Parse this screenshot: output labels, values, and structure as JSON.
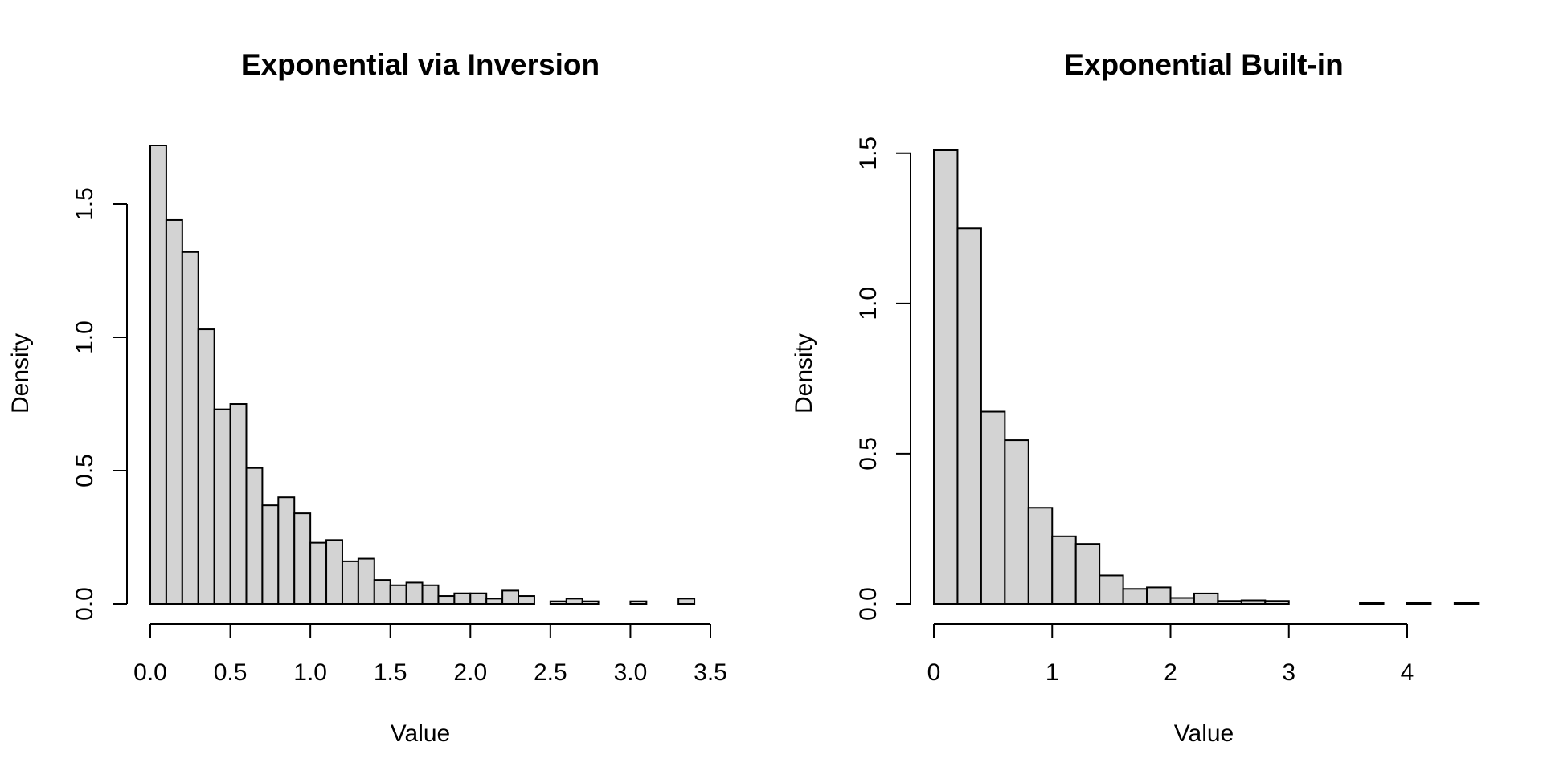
{
  "chart_data": [
    {
      "type": "bar",
      "title": "Exponential via Inversion",
      "xlabel": "Value",
      "ylabel": "Density",
      "bin_width": 0.1,
      "bin_start": 0,
      "values": [
        1.72,
        1.44,
        1.32,
        1.03,
        0.73,
        0.75,
        0.51,
        0.37,
        0.4,
        0.34,
        0.23,
        0.24,
        0.16,
        0.17,
        0.09,
        0.07,
        0.08,
        0.07,
        0.03,
        0.04,
        0.04,
        0.02,
        0.05,
        0.03,
        0.0,
        0.01,
        0.02,
        0.01,
        0.0,
        0.0,
        0.01,
        0.0,
        0.0,
        0.02
      ],
      "xlim": [
        0,
        3.5
      ],
      "ylim": [
        0,
        1.72
      ],
      "x_ticks": [
        0,
        0.5,
        1,
        1.5,
        2,
        2.5,
        3,
        3.5
      ],
      "x_tick_labels": [
        "0.0",
        "0.5",
        "1.0",
        "1.5",
        "2.0",
        "2.5",
        "3.0",
        "3.5"
      ],
      "y_ticks": [
        0,
        0.5,
        1,
        1.5
      ],
      "y_tick_labels": [
        "0.0",
        "0.5",
        "1.0",
        "1.5"
      ],
      "grid": false,
      "legend": "none"
    },
    {
      "type": "bar",
      "title": "Exponential Built-in",
      "xlabel": "Value",
      "ylabel": "Density",
      "bin_width": 0.2,
      "bin_start": 0,
      "values": [
        1.51,
        1.25,
        0.64,
        0.545,
        0.32,
        0.225,
        0.2,
        0.095,
        0.05,
        0.055,
        0.02,
        0.035,
        0.01,
        0.012,
        0.01,
        0.0,
        0.0,
        0.0,
        0.003,
        0.0,
        0.003,
        0.0,
        0.003
      ],
      "xlim": [
        0,
        4
      ],
      "ylim": [
        0,
        1.51
      ],
      "x_ticks": [
        0,
        1,
        2,
        3,
        4
      ],
      "x_tick_labels": [
        "0",
        "1",
        "2",
        "3",
        "4"
      ],
      "y_ticks": [
        0,
        0.5,
        1,
        1.5
      ],
      "y_tick_labels": [
        "0.0",
        "0.5",
        "1.0",
        "1.5"
      ],
      "grid": false,
      "legend": "none"
    }
  ]
}
